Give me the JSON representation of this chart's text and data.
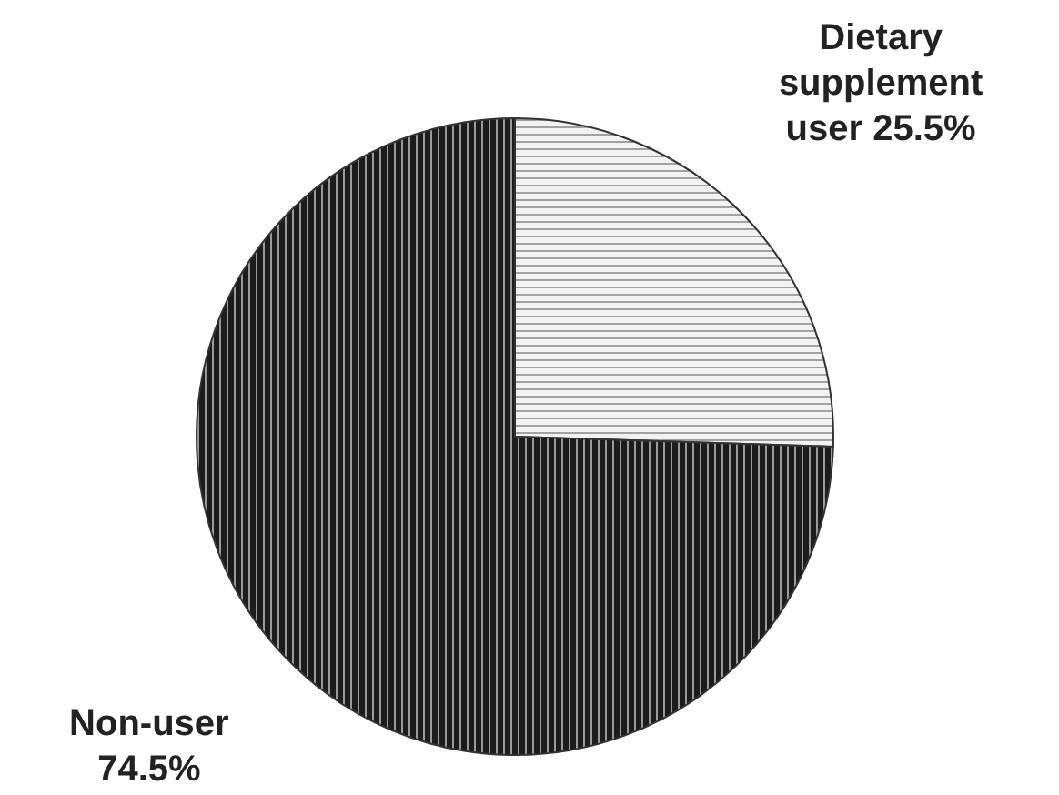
{
  "chart_data": {
    "type": "pie",
    "categories": [
      "Dietary supplement user",
      "Non-user"
    ],
    "values": [
      25.5,
      74.5
    ],
    "colors": [
      "#f2f2f2",
      "#1c1c1c"
    ],
    "value_labels": [
      "25.5%",
      "74.5%"
    ]
  }
}
